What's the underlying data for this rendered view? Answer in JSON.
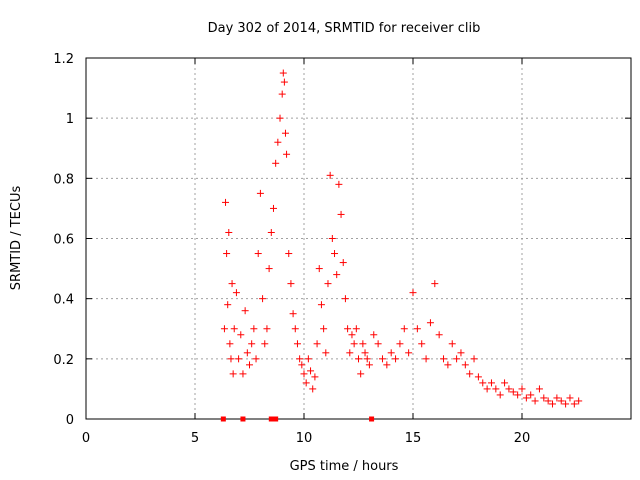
{
  "chart_data": {
    "type": "scatter",
    "title": "Day 302 of 2014, SRMTID for receiver clib",
    "xlabel": "GPS time / hours",
    "ylabel": "SRMTID / TECUs",
    "xlim": [
      0,
      25
    ],
    "ylim": [
      0,
      1.2
    ],
    "grid": true,
    "x_ticks": [
      0,
      5,
      10,
      15,
      20
    ],
    "x_tick_labels": [
      "0",
      "5",
      "10",
      "15",
      "20"
    ],
    "y_ticks": [
      0,
      0.2,
      0.4,
      0.6,
      0.8,
      1.0,
      1.2
    ],
    "y_tick_labels": [
      "0",
      "0.2",
      "0.4",
      "0.6",
      "0.8",
      "1",
      "1.2"
    ],
    "marker": "plus",
    "marker_color": "#ff0000",
    "series": [
      {
        "name": "SRMTID",
        "x": [
          6.35,
          6.4,
          6.45,
          6.5,
          6.55,
          6.6,
          6.65,
          6.7,
          6.75,
          6.8,
          6.9,
          7.0,
          7.1,
          7.2,
          7.3,
          7.4,
          7.5,
          7.6,
          7.7,
          7.8,
          7.9,
          8.0,
          8.1,
          8.2,
          8.3,
          8.4,
          8.5,
          8.6,
          8.7,
          8.8,
          8.9,
          9.0,
          9.05,
          9.1,
          9.15,
          9.2,
          9.3,
          9.4,
          9.5,
          9.6,
          9.7,
          9.8,
          9.9,
          10.0,
          10.1,
          10.2,
          10.3,
          10.4,
          10.5,
          10.6,
          10.7,
          10.8,
          10.9,
          11.0,
          11.1,
          11.2,
          11.3,
          11.4,
          11.5,
          11.6,
          11.7,
          11.8,
          11.9,
          12.0,
          12.1,
          12.2,
          12.3,
          12.4,
          12.5,
          12.6,
          12.7,
          12.8,
          12.9,
          13.0,
          13.2,
          13.4,
          13.6,
          13.8,
          14.0,
          14.2,
          14.4,
          14.6,
          14.8,
          15.0,
          15.2,
          15.4,
          15.6,
          15.8,
          16.0,
          16.2,
          16.4,
          16.6,
          16.8,
          17.0,
          17.2,
          17.4,
          17.6,
          17.8,
          18.0,
          18.2,
          18.4,
          18.6,
          18.8,
          19.0,
          19.2,
          19.4,
          19.6,
          19.8,
          20.0,
          20.2,
          20.4,
          20.6,
          20.8,
          21.0,
          21.2,
          21.4,
          21.6,
          21.8,
          22.0,
          22.2,
          22.4,
          22.6
        ],
        "y": [
          0.3,
          0.72,
          0.55,
          0.38,
          0.62,
          0.25,
          0.2,
          0.45,
          0.15,
          0.3,
          0.42,
          0.2,
          0.28,
          0.15,
          0.36,
          0.22,
          0.18,
          0.25,
          0.3,
          0.2,
          0.55,
          0.75,
          0.4,
          0.25,
          0.3,
          0.5,
          0.62,
          0.7,
          0.85,
          0.92,
          1.0,
          1.08,
          1.15,
          1.12,
          0.95,
          0.88,
          0.55,
          0.45,
          0.35,
          0.3,
          0.25,
          0.2,
          0.18,
          0.15,
          0.12,
          0.2,
          0.16,
          0.1,
          0.14,
          0.25,
          0.5,
          0.38,
          0.3,
          0.22,
          0.45,
          0.81,
          0.6,
          0.55,
          0.48,
          0.78,
          0.68,
          0.52,
          0.4,
          0.3,
          0.22,
          0.28,
          0.25,
          0.3,
          0.2,
          0.15,
          0.25,
          0.22,
          0.2,
          0.18,
          0.28,
          0.25,
          0.2,
          0.18,
          0.22,
          0.2,
          0.25,
          0.3,
          0.22,
          0.42,
          0.3,
          0.25,
          0.2,
          0.32,
          0.45,
          0.28,
          0.2,
          0.18,
          0.25,
          0.2,
          0.22,
          0.18,
          0.15,
          0.2,
          0.14,
          0.12,
          0.1,
          0.12,
          0.1,
          0.08,
          0.12,
          0.1,
          0.09,
          0.08,
          0.1,
          0.07,
          0.08,
          0.06,
          0.1,
          0.07,
          0.06,
          0.05,
          0.07,
          0.06,
          0.05,
          0.07,
          0.05,
          0.06
        ]
      }
    ],
    "zero_markers_x": [
      6.3,
      7.2,
      8.5,
      8.7,
      13.1
    ]
  }
}
